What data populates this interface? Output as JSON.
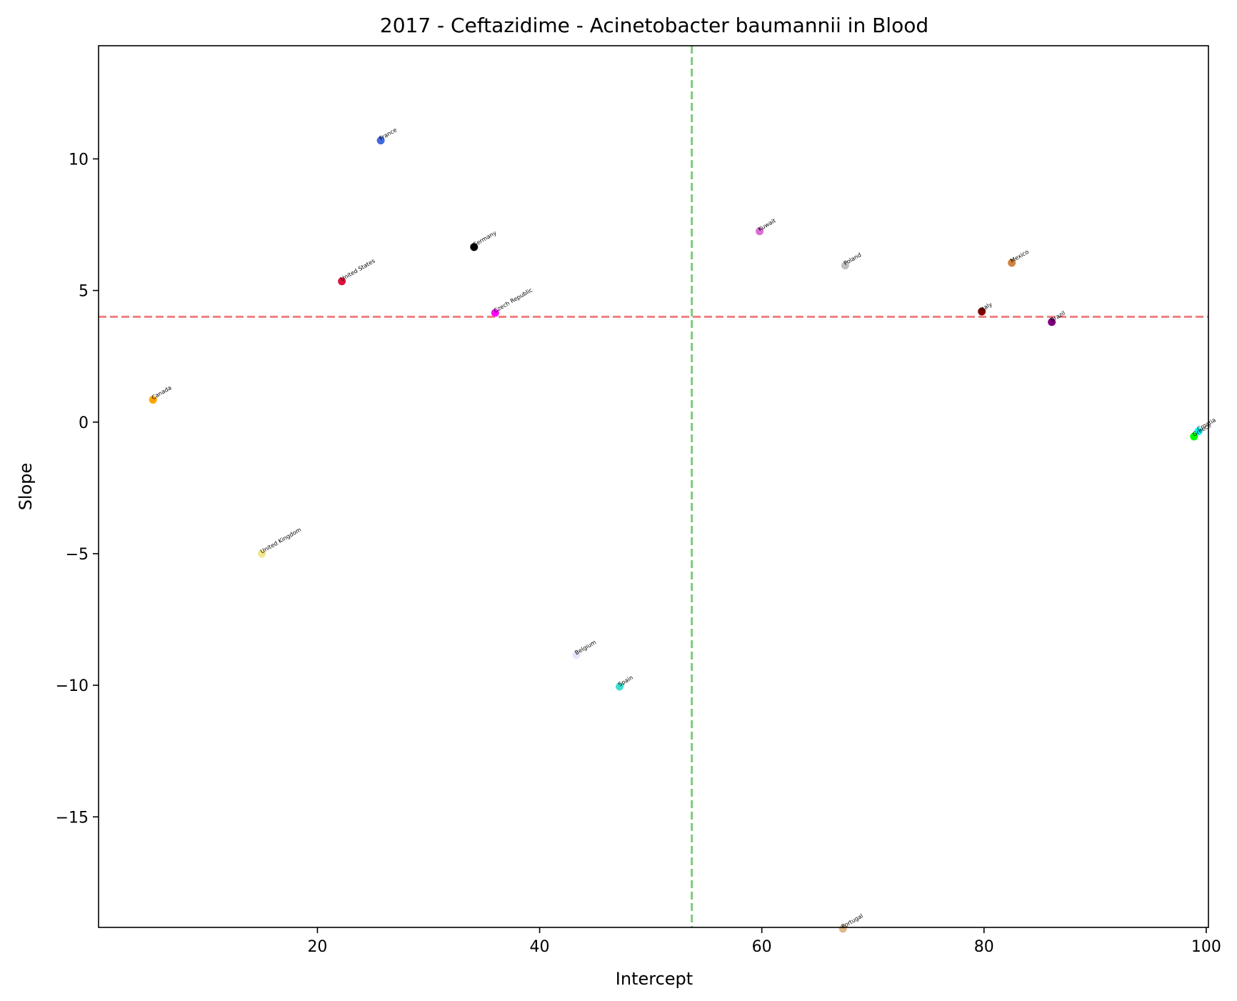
{
  "chart_data": {
    "type": "scatter",
    "title": "2017 - Ceftazidime - Acinetobacter baumannii in Blood",
    "xlabel": "Intercept",
    "ylabel": "Slope",
    "xlim": [
      0.3,
      100.2
    ],
    "ylim": [
      -19.2,
      14.3
    ],
    "xticks": [
      20,
      40,
      60,
      80,
      100
    ],
    "xtick_labels": [
      "20",
      "40",
      "60",
      "80",
      "100"
    ],
    "yticks": [
      10,
      5,
      0,
      -5,
      -10,
      -15
    ],
    "ytick_labels": [
      "10",
      "5",
      "0",
      "−5",
      "−10",
      "−15"
    ],
    "grid": false,
    "reference_lines": [
      {
        "orientation": "horizontal",
        "value": 4.0,
        "color": "#f08080",
        "style": "dashed"
      },
      {
        "orientation": "vertical",
        "value": 53.7,
        "color": "#7fc97f",
        "style": "dashed"
      }
    ],
    "points": [
      {
        "label": "France",
        "x": 25.7,
        "y": 10.7,
        "color": "#4169e1"
      },
      {
        "label": "Germany",
        "x": 34.1,
        "y": 6.65,
        "color": "#000000"
      },
      {
        "label": "United States",
        "x": 22.2,
        "y": 5.35,
        "color": "#dc143c"
      },
      {
        "label": "Czech Republic",
        "x": 36.0,
        "y": 4.15,
        "color": "#ff00ff"
      },
      {
        "label": "Kuwait",
        "x": 59.8,
        "y": 7.25,
        "color": "#da70d6"
      },
      {
        "label": "Poland",
        "x": 67.5,
        "y": 5.95,
        "color": "#c0c0c0"
      },
      {
        "label": "Mexico",
        "x": 82.5,
        "y": 6.05,
        "color": "#cd853f"
      },
      {
        "label": "Italy",
        "x": 79.8,
        "y": 4.2,
        "color": "#800000"
      },
      {
        "label": "Brazil",
        "x": 86.1,
        "y": 3.8,
        "color": "#800080"
      },
      {
        "label": "Canada",
        "x": 5.2,
        "y": 0.85,
        "color": "#ffa500"
      },
      {
        "label": "Croatia",
        "x": 99.3,
        "y": -0.35,
        "color": "#00ffff"
      },
      {
        "label": "Greece",
        "x": 98.9,
        "y": -0.55,
        "color": "#00ff00"
      },
      {
        "label": "United Kingdom",
        "x": 15.0,
        "y": -5.0,
        "color": "#f0e68c"
      },
      {
        "label": "Belgium",
        "x": 43.3,
        "y": -8.85,
        "color": "#e6e6fa"
      },
      {
        "label": "Spain",
        "x": 47.2,
        "y": -10.05,
        "color": "#40e0d0"
      },
      {
        "label": "Portugal",
        "x": 67.3,
        "y": -19.25,
        "color": "#deb887"
      }
    ]
  }
}
